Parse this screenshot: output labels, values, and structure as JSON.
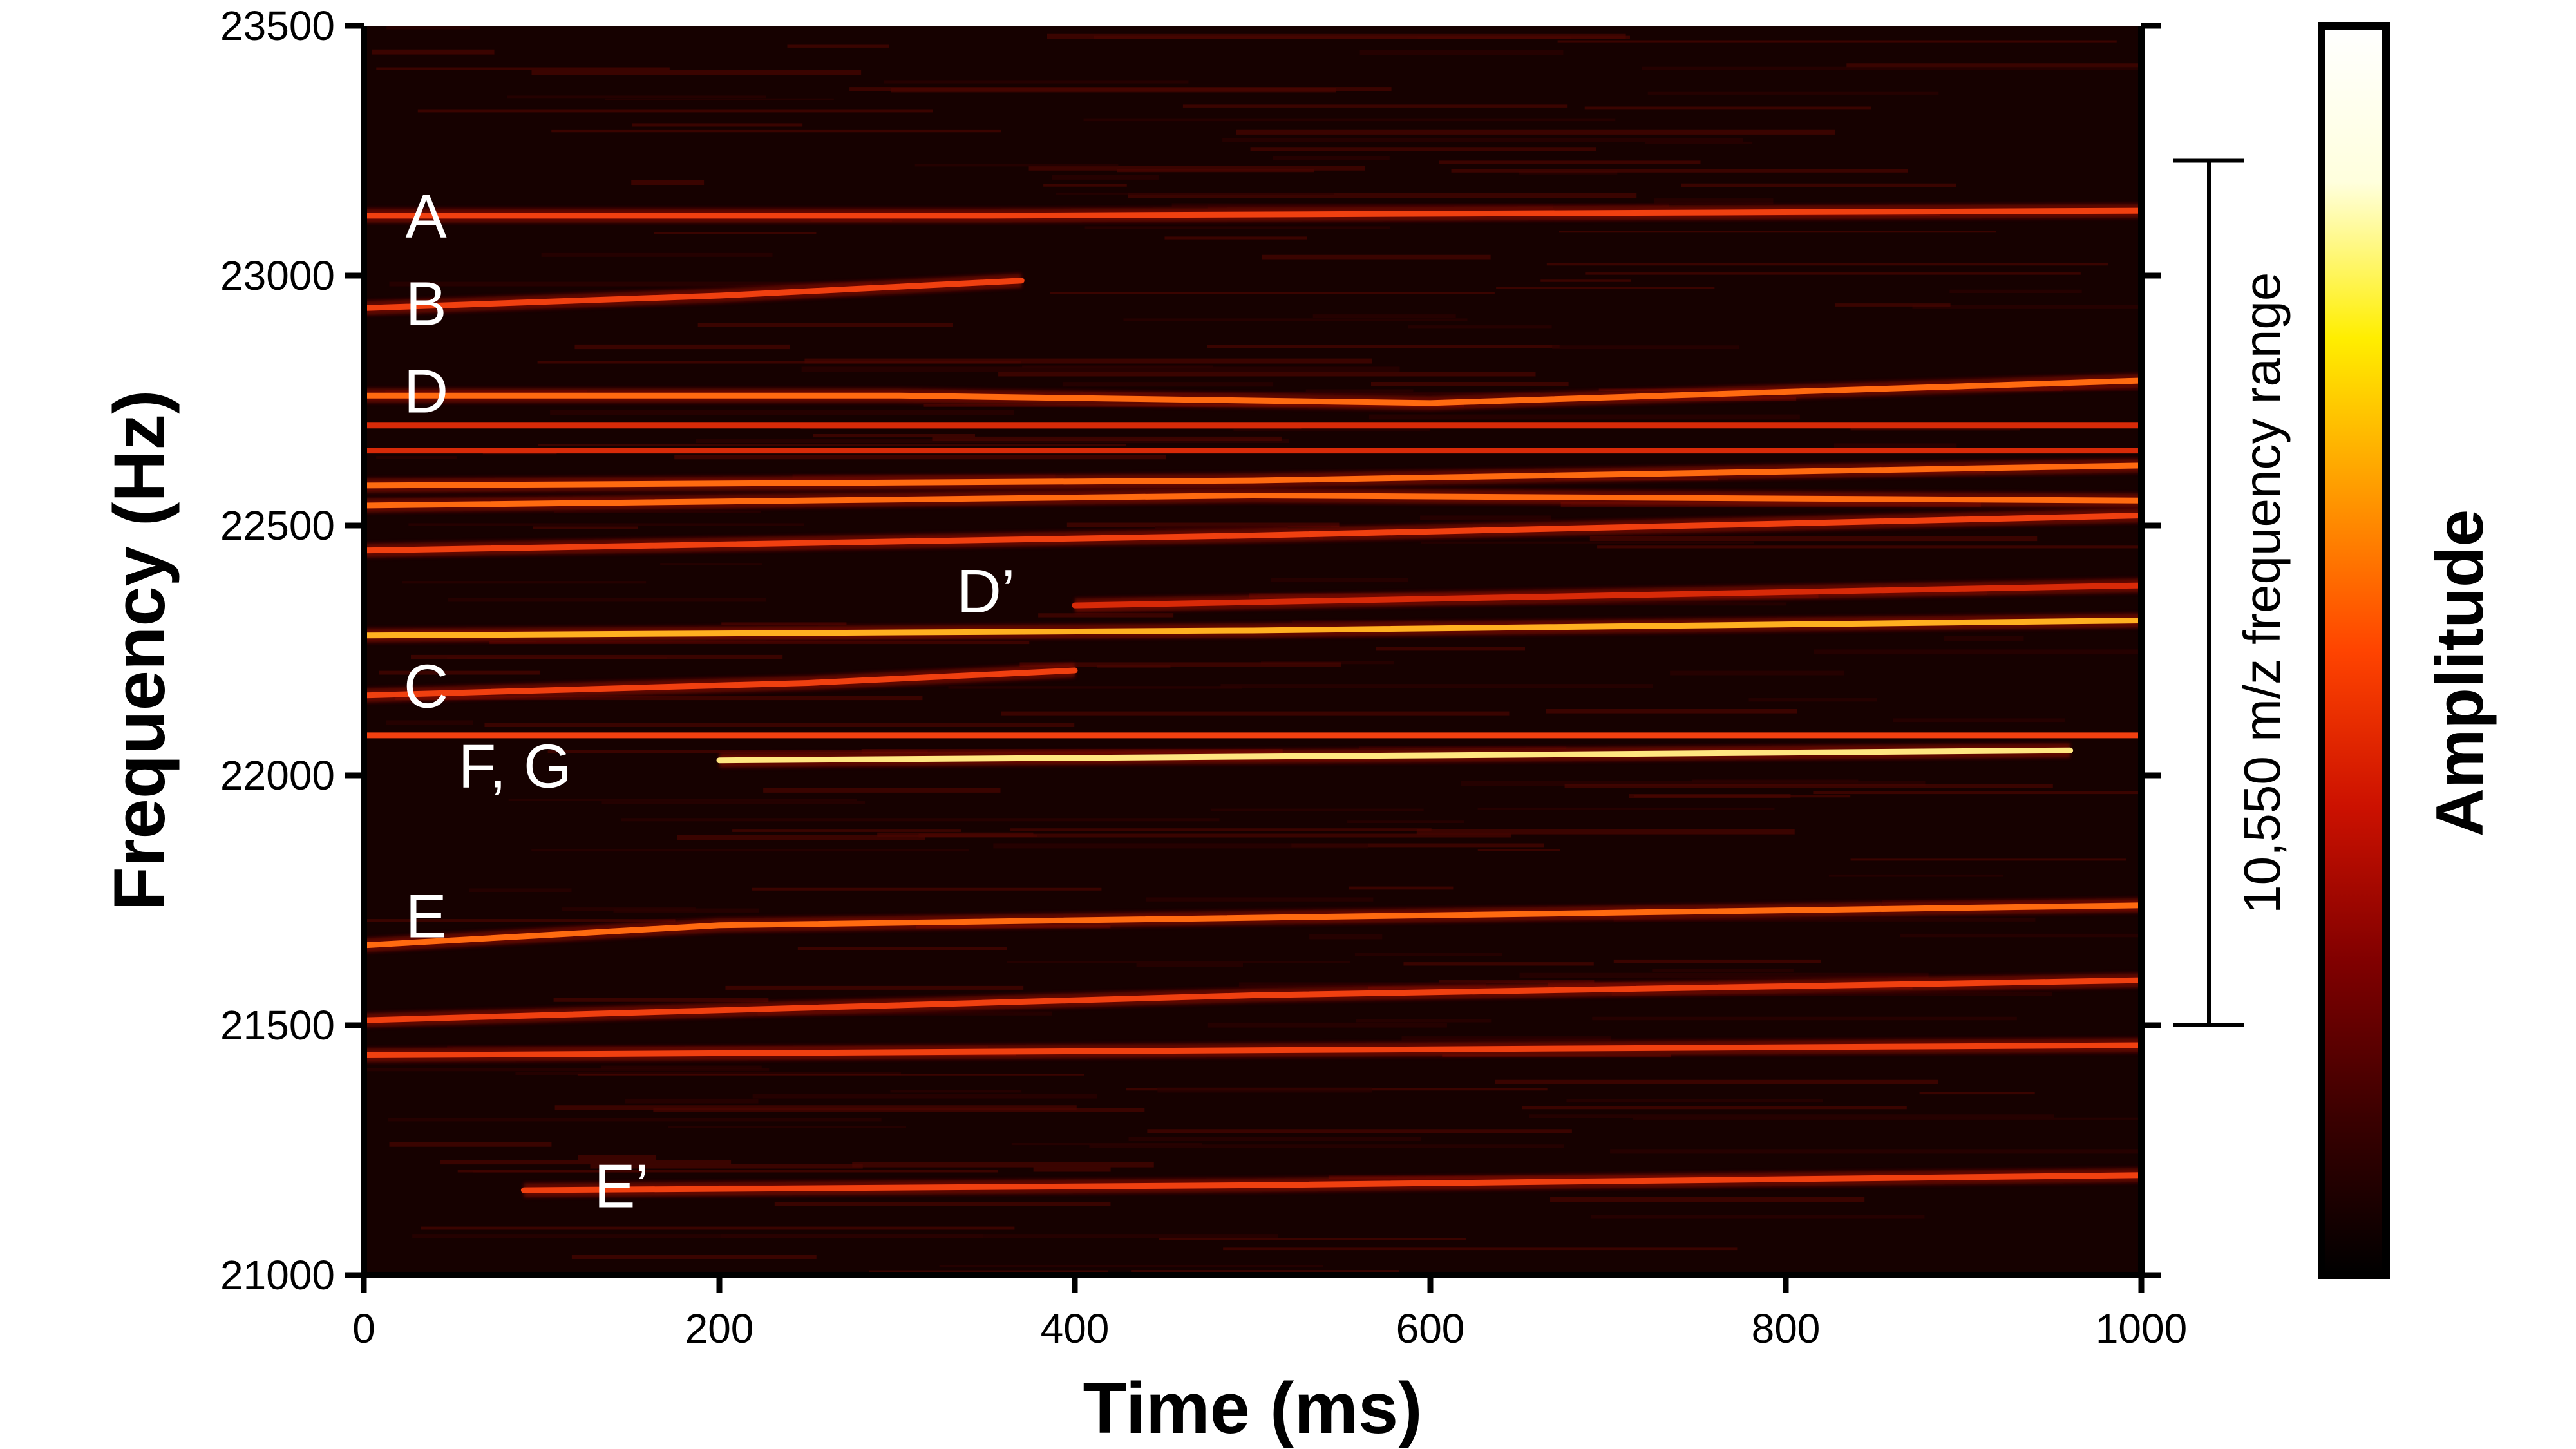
{
  "chart_data": {
    "type": "heatmap",
    "title": "",
    "xlabel": "Time (ms)",
    "ylabel": "Frequency (Hz)",
    "xlim": [
      0,
      1000
    ],
    "ylim": [
      21000,
      23500
    ],
    "x_ticks": [
      0,
      200,
      400,
      600,
      800,
      1000
    ],
    "y_ticks": [
      21000,
      21500,
      22000,
      22500,
      23000,
      23500
    ],
    "grid": false,
    "colorbar": {
      "label": "Amplitude",
      "colormap": [
        "#000000",
        "#3a0000",
        "#800000",
        "#cc1100",
        "#ff4400",
        "#ff9900",
        "#ffee00",
        "#ffffdd",
        "#ffffff"
      ]
    },
    "range_annotation": {
      "label": "10,550 m/z  frequency range",
      "y_start": 21500,
      "y_end": 23230
    },
    "band_labels": [
      {
        "text": "A",
        "x": 35,
        "y": 23120
      },
      {
        "text": "B",
        "x": 35,
        "y": 22945
      },
      {
        "text": "D",
        "x": 35,
        "y": 22770
      },
      {
        "text": "D’",
        "x": 350,
        "y": 22370
      },
      {
        "text": "C",
        "x": 35,
        "y": 22180
      },
      {
        "text": "F, G",
        "x": 85,
        "y": 22020
      },
      {
        "text": "E",
        "x": 35,
        "y": 21720
      },
      {
        "text": "E’",
        "x": 145,
        "y": 21180
      }
    ],
    "series": [
      {
        "x": [
          0,
          350,
          1000
        ],
        "y": [
          23120,
          23120,
          23130
        ],
        "intensity": 0.75
      },
      {
        "x": [
          0,
          200,
          370
        ],
        "y": [
          22935,
          22960,
          22990
        ],
        "intensity": 0.7
      },
      {
        "x": [
          0,
          300,
          600,
          1000
        ],
        "y": [
          22760,
          22760,
          22745,
          22790
        ],
        "intensity": 0.85
      },
      {
        "x": [
          0,
          500,
          1000
        ],
        "y": [
          22700,
          22700,
          22700
        ],
        "intensity": 0.6
      },
      {
        "x": [
          0,
          500,
          1000
        ],
        "y": [
          22650,
          22650,
          22650
        ],
        "intensity": 0.6
      },
      {
        "x": [
          0,
          500,
          1000
        ],
        "y": [
          22580,
          22590,
          22620
        ],
        "intensity": 0.85
      },
      {
        "x": [
          0,
          500,
          1000
        ],
        "y": [
          22540,
          22560,
          22550
        ],
        "intensity": 0.8
      },
      {
        "x": [
          0,
          500,
          1000
        ],
        "y": [
          22450,
          22480,
          22520
        ],
        "intensity": 0.7
      },
      {
        "x": [
          400,
          700,
          1000
        ],
        "y": [
          22340,
          22360,
          22380
        ],
        "intensity": 0.65
      },
      {
        "x": [
          0,
          500,
          1000
        ],
        "y": [
          22280,
          22290,
          22310
        ],
        "intensity": 0.9
      },
      {
        "x": [
          0,
          250,
          400
        ],
        "y": [
          22160,
          22185,
          22210
        ],
        "intensity": 0.7
      },
      {
        "x": [
          0,
          500,
          1000
        ],
        "y": [
          22080,
          22080,
          22080
        ],
        "intensity": 0.75
      },
      {
        "x": [
          200,
          600,
          960
        ],
        "y": [
          22030,
          22040,
          22050
        ],
        "intensity": 1.0
      },
      {
        "x": [
          0,
          200,
          1000
        ],
        "y": [
          21660,
          21700,
          21740
        ],
        "intensity": 0.8
      },
      {
        "x": [
          0,
          500,
          1000
        ],
        "y": [
          21510,
          21560,
          21590
        ],
        "intensity": 0.7
      },
      {
        "x": [
          0,
          500,
          1000
        ],
        "y": [
          21440,
          21450,
          21460
        ],
        "intensity": 0.7
      },
      {
        "x": [
          90,
          500,
          1000
        ],
        "y": [
          21170,
          21180,
          21200
        ],
        "intensity": 0.75
      }
    ]
  }
}
